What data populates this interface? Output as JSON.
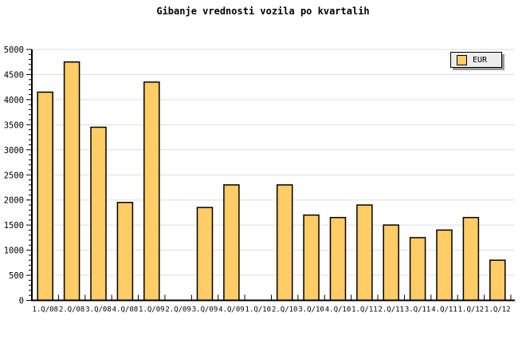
{
  "title": "Gibanje vrednosti vozila po kvartalih",
  "legend": {
    "label": "EUR",
    "position": "top-right"
  },
  "chart_data": {
    "type": "bar",
    "title": "Gibanje vrednosti vozila po kvartalih",
    "xlabel": "",
    "ylabel": "",
    "categories": [
      "1.Q/08",
      "2.Q/08",
      "3.Q/08",
      "4.Q/08",
      "1.Q/09",
      "2.Q/09",
      "3.Q/09",
      "4.Q/09",
      "1.Q/10",
      "2.Q/10",
      "3.Q/10",
      "4.Q/10",
      "1.Q/11",
      "2.Q/11",
      "3.Q/11",
      "4.Q/11",
      "1.Q/12",
      "1.Q/12"
    ],
    "series": [
      {
        "name": "EUR",
        "values": [
          4150,
          4750,
          3450,
          1950,
          4350,
          null,
          1850,
          2300,
          null,
          2300,
          1700,
          1650,
          1900,
          1500,
          1250,
          1400,
          1650,
          800
        ]
      }
    ],
    "ylim": [
      0,
      5000
    ],
    "ytick_step": 500,
    "ytick_minor_step": 100,
    "ytick_labels": [
      "0",
      "500",
      "1000",
      "1500",
      "2000",
      "2500",
      "3000",
      "3500",
      "4000",
      "4500",
      "5000"
    ],
    "grid": "horizontal",
    "legend_position": "top-right",
    "colors": {
      "bar_fill": "#FFCC66",
      "bar_border": "#000000",
      "grid_line": "#DDDDDD",
      "axis": "#000000",
      "text": "#000000",
      "legend_bg": "#EDEDED",
      "legend_shadow": "#999999",
      "background": "#FFFFFF"
    }
  }
}
